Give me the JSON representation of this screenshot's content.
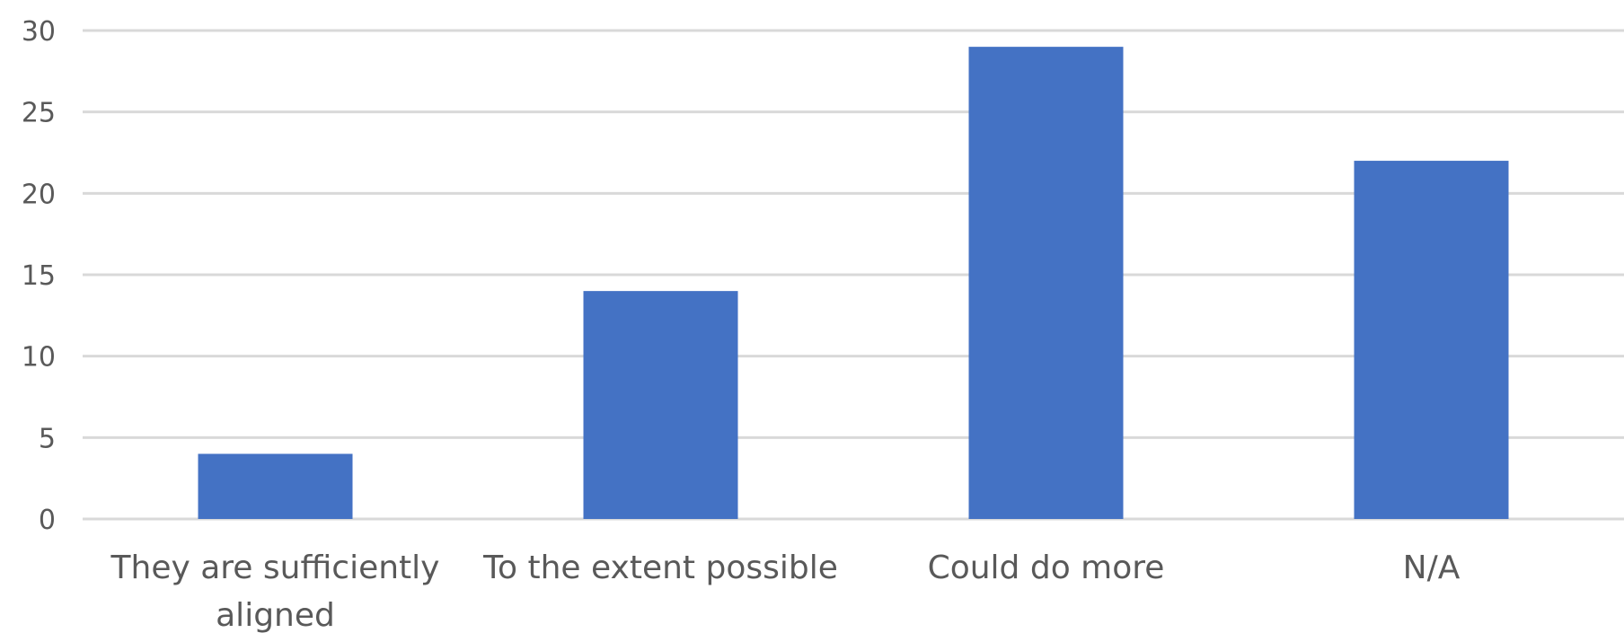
{
  "chart_data": {
    "type": "bar",
    "categories": [
      [
        "They are sufficiently",
        "aligned"
      ],
      [
        "To the extent possible"
      ],
      [
        "Could do more"
      ],
      [
        "N/A"
      ]
    ],
    "values": [
      4,
      14,
      29,
      22
    ],
    "ylim": [
      0,
      30
    ],
    "yticks": [
      0,
      5,
      10,
      15,
      20,
      25,
      30
    ],
    "grid": true,
    "legend": "none",
    "bar_color": "#4472c4"
  }
}
